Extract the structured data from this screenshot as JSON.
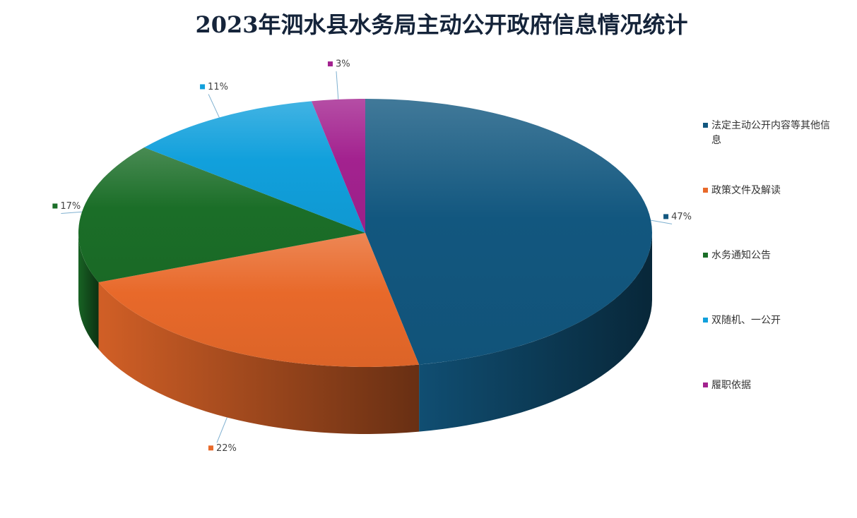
{
  "chart_data": {
    "type": "pie",
    "title": "2023年泗水县水务局主动公开政府信息情况统计",
    "categories": [
      "法定主动公开内容等其他信息",
      "政策文件及解读",
      "水务通知公告",
      "双随机、一公开",
      "履职依据"
    ],
    "values": [
      47,
      22,
      17,
      11,
      3
    ],
    "value_labels": [
      "47%",
      "22%",
      "17%",
      "11%",
      "3%"
    ],
    "colors": [
      "#12577f",
      "#e8692a",
      "#1b6e28",
      "#11a0dc",
      "#a3228f"
    ],
    "legend": "right"
  }
}
